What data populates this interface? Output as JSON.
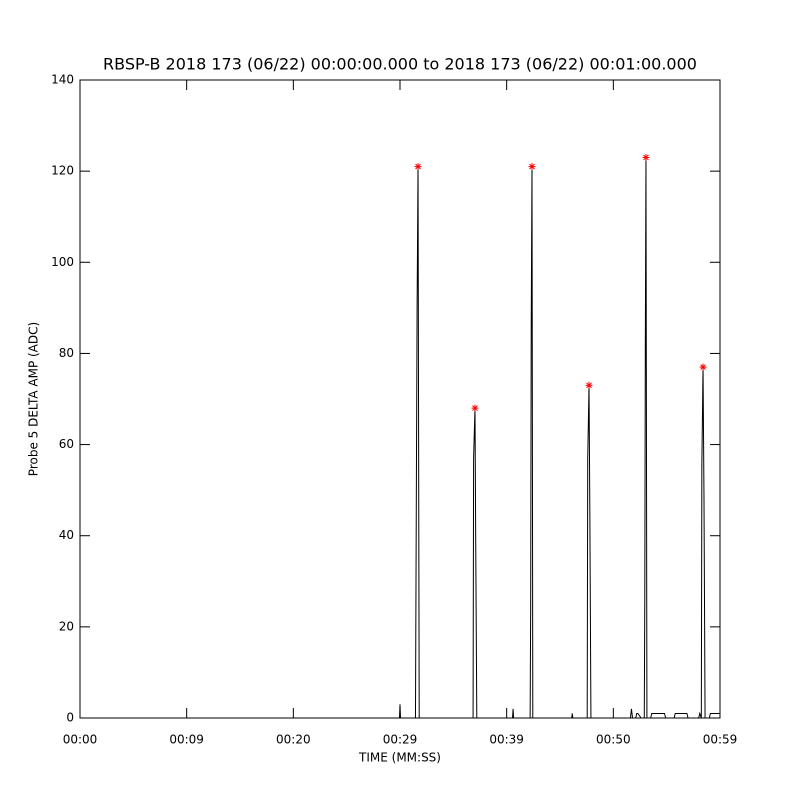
{
  "chart_data": {
    "type": "line",
    "title": "RBSP-B 2018 173 (06/22) 00:00:00.000 to 2018 173 (06/22) 00:01:00.000",
    "x_label": "TIME (MM:SS)",
    "y_label": "Probe 5 DELTA AMP (ADC)",
    "xlim": [
      0,
      60
    ],
    "ylim": [
      0,
      140
    ],
    "xticks": [
      {
        "value": 0,
        "label": "00:00"
      },
      {
        "value": 10,
        "label": "00:09"
      },
      {
        "value": 20,
        "label": "00:20"
      },
      {
        "value": 30,
        "label": "00:29"
      },
      {
        "value": 40,
        "label": "00:39"
      },
      {
        "value": 50,
        "label": "00:50"
      },
      {
        "value": 60,
        "label": "00:59"
      }
    ],
    "yticks": [
      0,
      20,
      40,
      60,
      80,
      100,
      120,
      140
    ],
    "series": [
      {
        "color": "#000000",
        "x": [
          0,
          29.95,
          30.0,
          30.05,
          31.45,
          31.5,
          31.6,
          31.69,
          31.8,
          36.85,
          36.9,
          37.03,
          37.1,
          37.2,
          40.55,
          40.6,
          40.65,
          42.2,
          42.25,
          42.3,
          42.375,
          42.45,
          46.1,
          46.15,
          46.2,
          47.55,
          47.6,
          47.72,
          47.8,
          47.9,
          51.6,
          51.7,
          51.8,
          52.1,
          52.2,
          52.3,
          52.6,
          52.9,
          52.95,
          53.0,
          53.06,
          53.15,
          53.5,
          53.6,
          54.8,
          54.9,
          55.7,
          55.8,
          56.9,
          57.0,
          58.0,
          58.1,
          58.25,
          58.3,
          58.41,
          58.5,
          58.6,
          59.0,
          59.1,
          60
        ],
        "y": [
          0,
          0,
          3,
          0,
          0,
          30,
          89,
          121,
          0,
          0,
          57,
          68,
          38,
          0,
          0,
          2,
          0,
          0,
          24,
          85,
          121,
          0,
          0,
          1,
          0,
          0,
          57,
          73,
          44,
          0,
          0,
          2,
          0,
          0,
          1,
          1,
          0,
          0,
          27,
          82,
          123,
          0,
          0,
          1,
          1,
          0,
          0,
          1,
          1,
          0,
          0,
          1,
          0,
          56,
          77,
          48,
          0,
          0,
          1,
          1
        ]
      },
      {
        "color": "#ff0000",
        "marker": "star",
        "x": [
          31.69,
          37.03,
          42.375,
          47.72,
          53.06,
          58.41
        ],
        "y": [
          121,
          68,
          121,
          73,
          123,
          77
        ]
      }
    ]
  }
}
